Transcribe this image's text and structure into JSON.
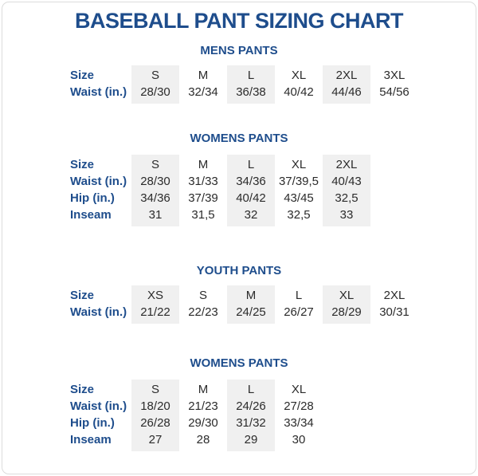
{
  "title": "BASEBALL PANT SIZING CHART",
  "colors": {
    "heading_navy": "#1e4d8c",
    "data_text": "#2b2b2b",
    "shaded_column": "#f0f0f0",
    "page_border": "#dcdcdc"
  },
  "sections": [
    {
      "heading": "MENS PANTS",
      "rows": [
        {
          "label": "Size",
          "values": [
            "S",
            "M",
            "L",
            "XL",
            "2XL",
            "3XL"
          ]
        },
        {
          "label": "Waist (in.)",
          "values": [
            "28/30",
            "32/34",
            "36/38",
            "40/42",
            "44/46",
            "54/56"
          ]
        }
      ]
    },
    {
      "heading": "WOMENS PANTS",
      "rows": [
        {
          "label": "Size",
          "values": [
            "S",
            "M",
            "L",
            "XL",
            "2XL"
          ]
        },
        {
          "label": "Waist (in.)",
          "values": [
            "28/30",
            "31/33",
            "34/36",
            "37/39,5",
            "40/43"
          ]
        },
        {
          "label": "Hip (in.)",
          "values": [
            "34/36",
            "37/39",
            "40/42",
            "43/45",
            "32,5"
          ]
        },
        {
          "label": "Inseam",
          "values": [
            "31",
            "31,5",
            "32",
            "32,5",
            "33"
          ]
        }
      ]
    },
    {
      "heading": "YOUTH PANTS",
      "rows": [
        {
          "label": "Size",
          "values": [
            "XS",
            "S",
            "M",
            "L",
            "XL",
            "2XL"
          ]
        },
        {
          "label": "Waist (in.)",
          "values": [
            "21/22",
            "22/23",
            "24/25",
            "26/27",
            "28/29",
            "30/31"
          ]
        }
      ]
    },
    {
      "heading": "WOMENS PANTS",
      "rows": [
        {
          "label": "Size",
          "values": [
            "S",
            "M",
            "L",
            "XL"
          ]
        },
        {
          "label": "Waist (in.)",
          "values": [
            "18/20",
            "21/23",
            "24/26",
            "27/28"
          ]
        },
        {
          "label": "Hip (in.)",
          "values": [
            "26/28",
            "29/30",
            "31/32",
            "33/34"
          ]
        },
        {
          "label": "Inseam",
          "values": [
            "27",
            "28",
            "29",
            "30"
          ]
        }
      ]
    }
  ]
}
